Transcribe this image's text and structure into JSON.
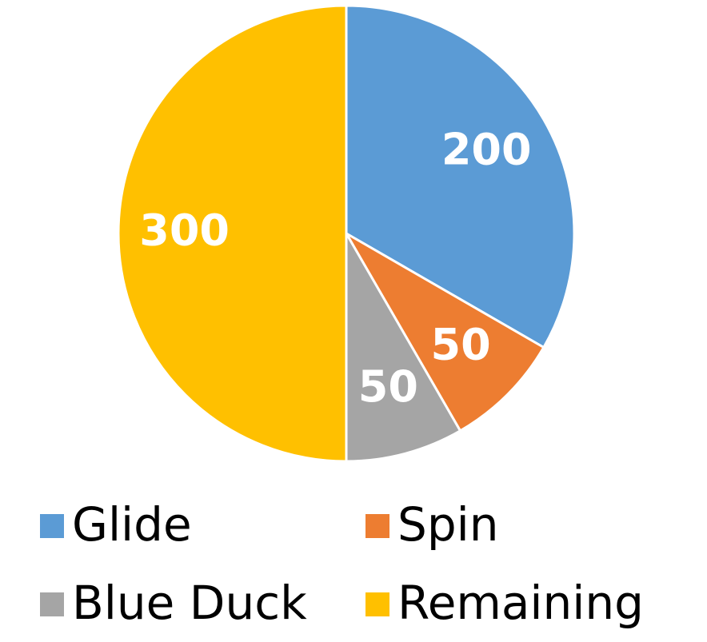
{
  "chart_data": {
    "type": "pie",
    "categories": [
      "Glide",
      "Spin",
      "Blue Duck",
      "Remaining"
    ],
    "values": [
      200,
      50,
      50,
      300
    ],
    "colors": [
      "#5b9bd5",
      "#ed7d31",
      "#a5a5a5",
      "#ffc000"
    ],
    "legend": "bottom"
  }
}
